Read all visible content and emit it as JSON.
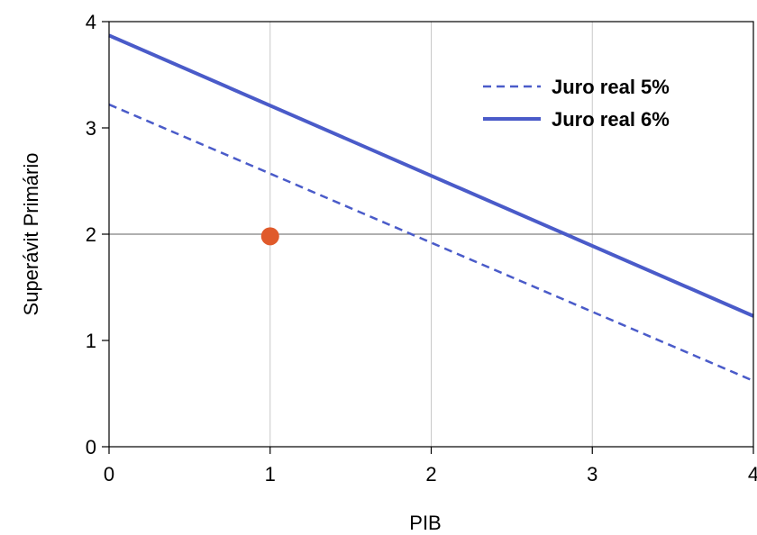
{
  "chart_data": {
    "type": "line",
    "title": "",
    "xlabel": "PIB",
    "ylabel": "Superávit Primário",
    "xlim": [
      0,
      4
    ],
    "ylim": [
      0,
      4
    ],
    "xticks": [
      "0",
      "1",
      "2",
      "3",
      "4"
    ],
    "yticks": [
      "0",
      "1",
      "2",
      "3",
      "4"
    ],
    "hline": {
      "y": 2,
      "color": "#808080"
    },
    "vgrid": [
      1,
      2,
      3
    ],
    "legend_position": "top-right",
    "series": [
      {
        "name": "Juro real 5%",
        "style": "dashed",
        "color": "#4a5bc9",
        "x": [
          0,
          4
        ],
        "y": [
          3.22,
          0.62
        ]
      },
      {
        "name": "Juro real 6%",
        "style": "solid",
        "color": "#4a5bc9",
        "x": [
          0,
          4
        ],
        "y": [
          3.87,
          1.23
        ]
      }
    ],
    "points": [
      {
        "x": 1,
        "y": 1.98,
        "color": "#e05a2b"
      }
    ]
  }
}
